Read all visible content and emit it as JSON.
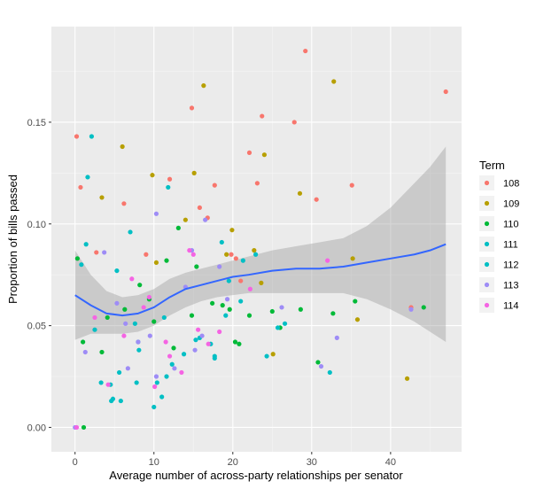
{
  "chart_data": {
    "type": "scatter",
    "title": "",
    "xlabel": "Average number of across-party relationships per senator",
    "ylabel": "Proportion of bills passed",
    "xlim": [
      -3,
      49
    ],
    "ylim": [
      -0.012,
      0.197
    ],
    "x_ticks": [
      0,
      10,
      20,
      30,
      40
    ],
    "x_tick_labels": [
      "0",
      "10",
      "20",
      "30",
      "40"
    ],
    "y_ticks": [
      0.0,
      0.05,
      0.1,
      0.15
    ],
    "y_tick_labels": [
      "0.00",
      "0.05",
      "0.10",
      "0.15"
    ],
    "grid": true,
    "legend": {
      "title": "Term",
      "position": "right",
      "entries": [
        {
          "name": "108",
          "color": "#F8766D"
        },
        {
          "name": "109",
          "color": "#B79F00"
        },
        {
          "name": "110",
          "color": "#00BA38"
        },
        {
          "name": "111",
          "color": "#00BFC4"
        },
        {
          "name": "112",
          "color": "#00BFC4"
        },
        {
          "name": "113",
          "color": "#9E8CF6"
        },
        {
          "name": "114",
          "color": "#F564E3"
        }
      ]
    },
    "series": [
      {
        "name": "108",
        "color": "#F8766D",
        "points": [
          [
            0.2,
            0.143
          ],
          [
            0.7,
            0.118
          ],
          [
            2.7,
            0.086
          ],
          [
            6.2,
            0.11
          ],
          [
            9.0,
            0.085
          ],
          [
            12.0,
            0.122
          ],
          [
            14.8,
            0.157
          ],
          [
            15.8,
            0.108
          ],
          [
            16.8,
            0.103
          ],
          [
            17.7,
            0.119
          ],
          [
            19.8,
            0.085
          ],
          [
            20.4,
            0.083
          ],
          [
            21.0,
            0.072
          ],
          [
            22.1,
            0.135
          ],
          [
            23.1,
            0.12
          ],
          [
            23.7,
            0.153
          ],
          [
            27.8,
            0.15
          ],
          [
            29.2,
            0.185
          ],
          [
            30.6,
            0.112
          ],
          [
            35.1,
            0.119
          ],
          [
            42.6,
            0.059
          ],
          [
            47.0,
            0.165
          ]
        ]
      },
      {
        "name": "109",
        "color": "#B79F00",
        "points": [
          [
            3.4,
            0.113
          ],
          [
            6.0,
            0.138
          ],
          [
            9.8,
            0.124
          ],
          [
            10.3,
            0.081
          ],
          [
            14.0,
            0.102
          ],
          [
            15.1,
            0.125
          ],
          [
            16.3,
            0.168
          ],
          [
            19.2,
            0.085
          ],
          [
            19.9,
            0.097
          ],
          [
            22.7,
            0.087
          ],
          [
            23.6,
            0.071
          ],
          [
            24.0,
            0.134
          ],
          [
            25.1,
            0.036
          ],
          [
            28.5,
            0.115
          ],
          [
            32.8,
            0.17
          ],
          [
            35.2,
            0.083
          ],
          [
            35.8,
            0.053
          ],
          [
            42.1,
            0.024
          ]
        ]
      },
      {
        "name": "110",
        "color": "#00BA38",
        "points": [
          [
            0.3,
            0.083
          ],
          [
            1.1,
            0.0
          ],
          [
            1.0,
            0.042
          ],
          [
            3.4,
            0.037
          ],
          [
            4.1,
            0.054
          ],
          [
            6.3,
            0.058
          ],
          [
            8.2,
            0.07
          ],
          [
            9.4,
            0.063
          ],
          [
            10.0,
            0.052
          ],
          [
            11.6,
            0.082
          ],
          [
            12.5,
            0.039
          ],
          [
            13.1,
            0.098
          ],
          [
            14.8,
            0.055
          ],
          [
            15.4,
            0.079
          ],
          [
            17.4,
            0.061
          ],
          [
            18.7,
            0.06
          ],
          [
            19.6,
            0.058
          ],
          [
            20.3,
            0.042
          ],
          [
            20.8,
            0.041
          ],
          [
            22.1,
            0.055
          ],
          [
            25.0,
            0.057
          ],
          [
            26.0,
            0.049
          ],
          [
            28.6,
            0.058
          ],
          [
            30.8,
            0.032
          ],
          [
            32.7,
            0.056
          ],
          [
            35.5,
            0.062
          ],
          [
            44.2,
            0.059
          ]
        ]
      },
      {
        "name": "111",
        "color": "#00BFC4",
        "points": [
          [
            1.4,
            0.09
          ],
          [
            3.3,
            0.022
          ],
          [
            4.5,
            0.021
          ],
          [
            4.8,
            0.014
          ],
          [
            5.3,
            0.077
          ],
          [
            5.6,
            0.027
          ],
          [
            5.8,
            0.013
          ],
          [
            7.0,
            0.096
          ],
          [
            7.6,
            0.051
          ],
          [
            8.0,
            0.042
          ],
          [
            11.0,
            0.015
          ],
          [
            11.6,
            0.025
          ],
          [
            12.3,
            0.031
          ],
          [
            15.3,
            0.043
          ],
          [
            17.7,
            0.034
          ],
          [
            18.6,
            0.091
          ],
          [
            19.1,
            0.055
          ],
          [
            21.3,
            0.082
          ],
          [
            22.9,
            0.085
          ],
          [
            24.3,
            0.035
          ],
          [
            25.7,
            0.049
          ]
        ]
      },
      {
        "name": "112",
        "color": "#00BFC4",
        "points": [
          [
            0.8,
            0.08
          ],
          [
            1.6,
            0.123
          ],
          [
            2.1,
            0.143
          ],
          [
            2.5,
            0.048
          ],
          [
            4.6,
            0.013
          ],
          [
            7.8,
            0.022
          ],
          [
            8.1,
            0.038
          ],
          [
            10.0,
            0.01
          ],
          [
            10.4,
            0.022
          ],
          [
            11.3,
            0.054
          ],
          [
            11.8,
            0.118
          ],
          [
            13.8,
            0.036
          ],
          [
            15.8,
            0.044
          ],
          [
            17.2,
            0.041
          ],
          [
            17.7,
            0.035
          ],
          [
            19.5,
            0.072
          ],
          [
            21.0,
            0.062
          ],
          [
            26.6,
            0.051
          ],
          [
            32.3,
            0.027
          ]
        ]
      },
      {
        "name": "113",
        "color": "#9E8CF6",
        "points": [
          [
            0.0,
            0.0
          ],
          [
            1.3,
            0.037
          ],
          [
            3.7,
            0.086
          ],
          [
            5.3,
            0.061
          ],
          [
            6.4,
            0.051
          ],
          [
            6.7,
            0.029
          ],
          [
            8.0,
            0.042
          ],
          [
            9.5,
            0.045
          ],
          [
            10.3,
            0.025
          ],
          [
            10.3,
            0.105
          ],
          [
            12.6,
            0.029
          ],
          [
            14.0,
            0.069
          ],
          [
            14.8,
            0.087
          ],
          [
            15.2,
            0.038
          ],
          [
            16.1,
            0.045
          ],
          [
            16.5,
            0.102
          ],
          [
            18.3,
            0.079
          ],
          [
            19.3,
            0.063
          ],
          [
            26.2,
            0.059
          ],
          [
            31.2,
            0.03
          ],
          [
            33.2,
            0.044
          ],
          [
            42.6,
            0.058
          ]
        ]
      },
      {
        "name": "114",
        "color": "#F564E3",
        "points": [
          [
            0.2,
            0.0
          ],
          [
            2.5,
            0.054
          ],
          [
            4.2,
            0.021
          ],
          [
            6.2,
            0.045
          ],
          [
            7.2,
            0.073
          ],
          [
            8.7,
            0.059
          ],
          [
            9.4,
            0.064
          ],
          [
            10.1,
            0.02
          ],
          [
            11.5,
            0.042
          ],
          [
            12.0,
            0.035
          ],
          [
            13.5,
            0.027
          ],
          [
            14.5,
            0.087
          ],
          [
            15.0,
            0.085
          ],
          [
            15.6,
            0.048
          ],
          [
            16.9,
            0.041
          ],
          [
            18.3,
            0.047
          ],
          [
            22.2,
            0.068
          ],
          [
            32.0,
            0.082
          ]
        ]
      }
    ],
    "smooth": {
      "name": "loess fit",
      "color": "#3366FF",
      "band_color": "#999999",
      "points": [
        {
          "x": 0.0,
          "y": 0.065,
          "lo": 0.043,
          "hi": 0.087
        },
        {
          "x": 2.0,
          "y": 0.06,
          "lo": 0.046,
          "hi": 0.075
        },
        {
          "x": 4.0,
          "y": 0.056,
          "lo": 0.046,
          "hi": 0.067
        },
        {
          "x": 6.0,
          "y": 0.055,
          "lo": 0.046,
          "hi": 0.064
        },
        {
          "x": 8.0,
          "y": 0.056,
          "lo": 0.047,
          "hi": 0.065
        },
        {
          "x": 10.0,
          "y": 0.059,
          "lo": 0.05,
          "hi": 0.068
        },
        {
          "x": 12.0,
          "y": 0.064,
          "lo": 0.055,
          "hi": 0.073
        },
        {
          "x": 14.0,
          "y": 0.068,
          "lo": 0.059,
          "hi": 0.076
        },
        {
          "x": 16.0,
          "y": 0.07,
          "lo": 0.062,
          "hi": 0.078
        },
        {
          "x": 18.0,
          "y": 0.072,
          "lo": 0.064,
          "hi": 0.08
        },
        {
          "x": 20.0,
          "y": 0.074,
          "lo": 0.065,
          "hi": 0.082
        },
        {
          "x": 22.0,
          "y": 0.075,
          "lo": 0.066,
          "hi": 0.084
        },
        {
          "x": 25.0,
          "y": 0.077,
          "lo": 0.066,
          "hi": 0.087
        },
        {
          "x": 28.0,
          "y": 0.078,
          "lo": 0.066,
          "hi": 0.089
        },
        {
          "x": 31.0,
          "y": 0.078,
          "lo": 0.066,
          "hi": 0.091
        },
        {
          "x": 34.0,
          "y": 0.079,
          "lo": 0.066,
          "hi": 0.093
        },
        {
          "x": 37.0,
          "y": 0.081,
          "lo": 0.063,
          "hi": 0.099
        },
        {
          "x": 40.0,
          "y": 0.083,
          "lo": 0.058,
          "hi": 0.108
        },
        {
          "x": 43.0,
          "y": 0.085,
          "lo": 0.052,
          "hi": 0.12
        },
        {
          "x": 45.0,
          "y": 0.087,
          "lo": 0.047,
          "hi": 0.128
        },
        {
          "x": 47.0,
          "y": 0.09,
          "lo": 0.042,
          "hi": 0.138
        }
      ]
    }
  }
}
